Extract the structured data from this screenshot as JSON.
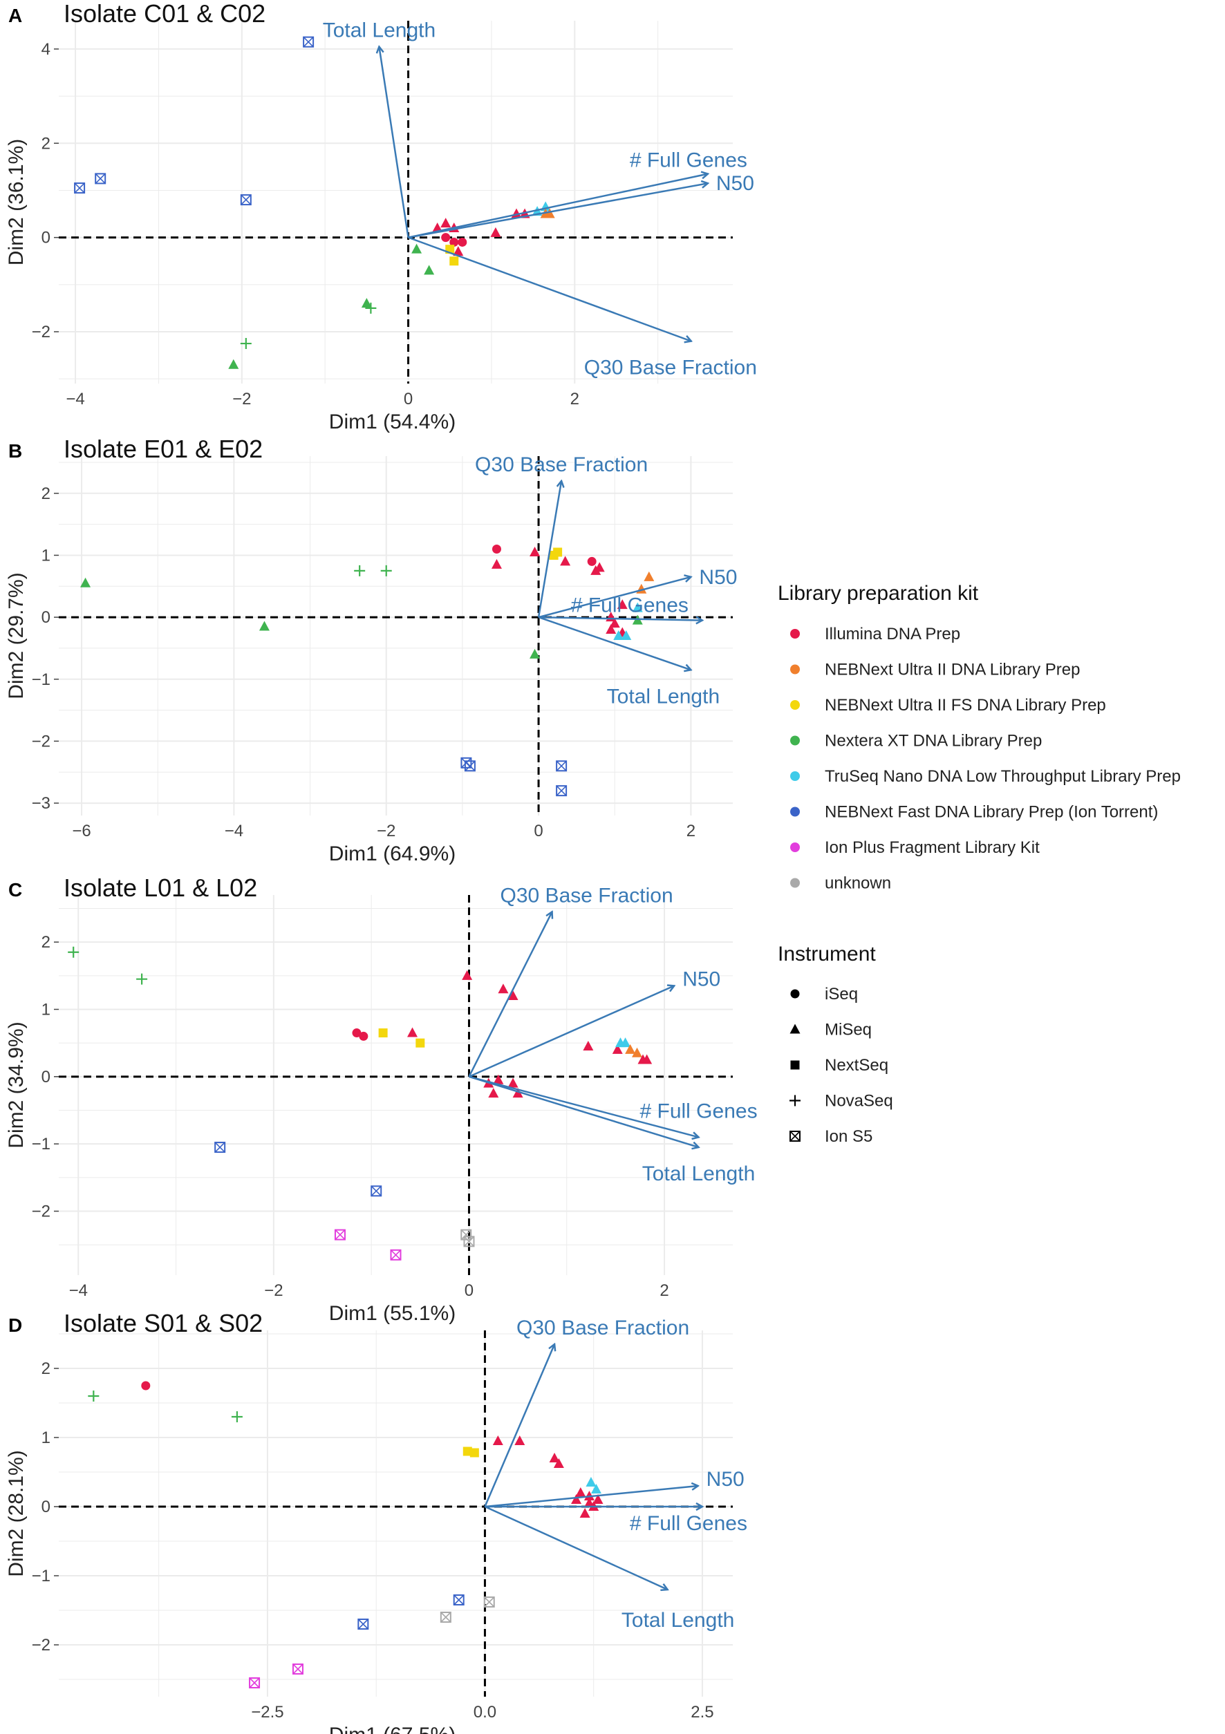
{
  "legend": {
    "kit_title": "Library preparation kit",
    "kits": [
      {
        "name": "Illumina DNA Prep",
        "color": "#e5194a"
      },
      {
        "name": "NEBNext Ultra II DNA Library Prep",
        "color": "#f07f2d"
      },
      {
        "name": "NEBNext Ultra II FS DNA Library Prep",
        "color": "#f3d70d"
      },
      {
        "name": "Nextera XT DNA Library Prep",
        "color": "#3fb34f"
      },
      {
        "name": "TruSeq Nano DNA Low Throughput Library Prep",
        "color": "#3fcbe9"
      },
      {
        "name": "NEBNext Fast DNA Library Prep (Ion Torrent)",
        "color": "#3a63c8"
      },
      {
        "name": "Ion Plus Fragment Library Kit",
        "color": "#e23ddd"
      },
      {
        "name": "unknown",
        "color": "#a9a9a9"
      }
    ],
    "instrument_title": "Instrument",
    "instruments": [
      "iSeq",
      "MiSeq",
      "NextSeq",
      "NovaSeq",
      "Ion S5"
    ]
  },
  "chart_data": [
    {
      "letter": "A",
      "type": "scatter",
      "title": "Isolate C01 & C02",
      "xlabel": "Dim1 (54.4%)",
      "ylabel": "Dim2 (36.1%)",
      "xlim": [
        -4.2,
        3.9
      ],
      "ylim": [
        -3.1,
        4.6
      ],
      "xticks": [
        -4,
        -2,
        0,
        2
      ],
      "xticklabels": [
        "−4",
        "−2",
        "0",
        "2"
      ],
      "yticks": [
        -2,
        0,
        2,
        4
      ],
      "yticklabels": [
        "−2",
        "0",
        "2",
        "4"
      ],
      "vectors": [
        {
          "label": "Total Length",
          "x": -0.35,
          "y": 4.05
        },
        {
          "label": "# Full Genes",
          "x": 3.6,
          "y": 1.35
        },
        {
          "label": "N50",
          "x": 3.6,
          "y": 1.15
        },
        {
          "label": "Q30 Base Fraction",
          "x": 3.4,
          "y": -2.2
        }
      ],
      "points": [
        {
          "x": -1.2,
          "y": 4.15,
          "kit": 5,
          "inst": 4
        },
        {
          "x": -3.95,
          "y": 1.05,
          "kit": 5,
          "inst": 4
        },
        {
          "x": -3.7,
          "y": 1.25,
          "kit": 5,
          "inst": 4
        },
        {
          "x": -1.95,
          "y": 0.8,
          "kit": 5,
          "inst": 4
        },
        {
          "x": -0.5,
          "y": -1.4,
          "kit": 3,
          "inst": 1
        },
        {
          "x": -0.45,
          "y": -1.5,
          "kit": 3,
          "inst": 3
        },
        {
          "x": -1.95,
          "y": -2.25,
          "kit": 3,
          "inst": 3
        },
        {
          "x": -2.1,
          "y": -2.7,
          "kit": 3,
          "inst": 1
        },
        {
          "x": 0.1,
          "y": -0.25,
          "kit": 3,
          "inst": 1
        },
        {
          "x": 0.25,
          "y": -0.7,
          "kit": 3,
          "inst": 1
        },
        {
          "x": 0.35,
          "y": 0.2,
          "kit": 0,
          "inst": 1
        },
        {
          "x": 0.45,
          "y": 0.3,
          "kit": 0,
          "inst": 1
        },
        {
          "x": 0.55,
          "y": 0.2,
          "kit": 0,
          "inst": 1
        },
        {
          "x": 0.45,
          "y": 0.0,
          "kit": 0,
          "inst": 0
        },
        {
          "x": 0.55,
          "y": -0.1,
          "kit": 0,
          "inst": 0
        },
        {
          "x": 0.65,
          "y": -0.1,
          "kit": 0,
          "inst": 0
        },
        {
          "x": 0.6,
          "y": -0.3,
          "kit": 0,
          "inst": 1
        },
        {
          "x": 0.5,
          "y": -0.25,
          "kit": 2,
          "inst": 2
        },
        {
          "x": 0.55,
          "y": -0.5,
          "kit": 2,
          "inst": 2
        },
        {
          "x": 1.05,
          "y": 0.1,
          "kit": 0,
          "inst": 1
        },
        {
          "x": 1.3,
          "y": 0.5,
          "kit": 0,
          "inst": 1
        },
        {
          "x": 1.4,
          "y": 0.5,
          "kit": 0,
          "inst": 1
        },
        {
          "x": 1.55,
          "y": 0.55,
          "kit": 4,
          "inst": 1
        },
        {
          "x": 1.65,
          "y": 0.65,
          "kit": 4,
          "inst": 1
        },
        {
          "x": 1.7,
          "y": 0.5,
          "kit": 1,
          "inst": 1
        },
        {
          "x": 1.65,
          "y": 0.5,
          "kit": 1,
          "inst": 1
        }
      ]
    },
    {
      "letter": "B",
      "type": "scatter",
      "title": "Isolate E01 & E02",
      "xlabel": "Dim1 (64.9%)",
      "ylabel": "Dim2 (29.7%)",
      "xlim": [
        -6.3,
        2.55
      ],
      "ylim": [
        -3.2,
        2.6
      ],
      "xticks": [
        -6,
        -4,
        -2,
        0,
        2
      ],
      "xticklabels": [
        "−6",
        "−4",
        "−2",
        "0",
        "2"
      ],
      "yticks": [
        -3,
        -2,
        -1,
        0,
        1,
        2
      ],
      "yticklabels": [
        "−3",
        "−2",
        "−1",
        "0",
        "1",
        "2"
      ],
      "vectors": [
        {
          "label": "Q30 Base Fraction",
          "x": 0.3,
          "y": 2.2
        },
        {
          "label": "N50",
          "x": 2.0,
          "y": 0.65
        },
        {
          "label": "# Full Genes",
          "x": 2.15,
          "y": -0.05
        },
        {
          "label": "Total Length",
          "x": 2.0,
          "y": -0.85
        }
      ],
      "points": [
        {
          "x": -5.95,
          "y": 0.55,
          "kit": 3,
          "inst": 1
        },
        {
          "x": -3.6,
          "y": -0.15,
          "kit": 3,
          "inst": 1
        },
        {
          "x": -2.35,
          "y": 0.75,
          "kit": 3,
          "inst": 3
        },
        {
          "x": -2.0,
          "y": 0.75,
          "kit": 3,
          "inst": 3
        },
        {
          "x": -0.05,
          "y": -0.6,
          "kit": 3,
          "inst": 1
        },
        {
          "x": -0.55,
          "y": 1.1,
          "kit": 0,
          "inst": 0
        },
        {
          "x": -0.55,
          "y": 0.85,
          "kit": 0,
          "inst": 1
        },
        {
          "x": -0.05,
          "y": 1.05,
          "kit": 0,
          "inst": 1
        },
        {
          "x": 0.2,
          "y": 1.0,
          "kit": 2,
          "inst": 2
        },
        {
          "x": 0.25,
          "y": 1.05,
          "kit": 2,
          "inst": 2
        },
        {
          "x": 0.35,
          "y": 0.9,
          "kit": 0,
          "inst": 1
        },
        {
          "x": 0.7,
          "y": 0.9,
          "kit": 0,
          "inst": 0
        },
        {
          "x": 0.75,
          "y": 0.75,
          "kit": 0,
          "inst": 1
        },
        {
          "x": 0.8,
          "y": 0.8,
          "kit": 0,
          "inst": 1
        },
        {
          "x": 1.35,
          "y": 0.45,
          "kit": 1,
          "inst": 1
        },
        {
          "x": 1.45,
          "y": 0.65,
          "kit": 1,
          "inst": 1
        },
        {
          "x": 1.1,
          "y": 0.2,
          "kit": 0,
          "inst": 1
        },
        {
          "x": 1.3,
          "y": 0.15,
          "kit": 4,
          "inst": 1
        },
        {
          "x": 1.3,
          "y": -0.05,
          "kit": 3,
          "inst": 1
        },
        {
          "x": 0.95,
          "y": 0.0,
          "kit": 0,
          "inst": 1
        },
        {
          "x": 1.0,
          "y": -0.1,
          "kit": 0,
          "inst": 1
        },
        {
          "x": 0.95,
          "y": -0.2,
          "kit": 0,
          "inst": 1
        },
        {
          "x": 1.1,
          "y": -0.25,
          "kit": 0,
          "inst": 1
        },
        {
          "x": 1.05,
          "y": -0.3,
          "kit": 4,
          "inst": 1
        },
        {
          "x": 1.15,
          "y": -0.3,
          "kit": 4,
          "inst": 1
        },
        {
          "x": -0.95,
          "y": -2.35,
          "kit": 5,
          "inst": 4
        },
        {
          "x": -0.9,
          "y": -2.4,
          "kit": 5,
          "inst": 4
        },
        {
          "x": 0.3,
          "y": -2.4,
          "kit": 5,
          "inst": 4
        },
        {
          "x": 0.3,
          "y": -2.8,
          "kit": 5,
          "inst": 4
        }
      ]
    },
    {
      "letter": "C",
      "type": "scatter",
      "title": "Isolate L01 & L02",
      "xlabel": "Dim1 (55.1%)",
      "ylabel": "Dim2 (34.9%)",
      "xlim": [
        -4.2,
        2.7
      ],
      "ylim": [
        -2.95,
        2.7
      ],
      "xticks": [
        -4,
        -2,
        0,
        2
      ],
      "xticklabels": [
        "−4",
        "−2",
        "0",
        "2"
      ],
      "yticks": [
        -2,
        -1,
        0,
        1,
        2
      ],
      "yticklabels": [
        "−2",
        "−1",
        "0",
        "1",
        "2"
      ],
      "vectors": [
        {
          "label": "Q30 Base Fraction",
          "x": 0.85,
          "y": 2.45
        },
        {
          "label": "N50",
          "x": 2.1,
          "y": 1.35
        },
        {
          "label": "# Full Genes",
          "x": 2.35,
          "y": -0.9
        },
        {
          "label": "Total Length",
          "x": 2.35,
          "y": -1.05
        }
      ],
      "points": [
        {
          "x": -4.05,
          "y": 1.85,
          "kit": 3,
          "inst": 3
        },
        {
          "x": -3.35,
          "y": 1.45,
          "kit": 3,
          "inst": 3
        },
        {
          "x": -1.15,
          "y": 0.65,
          "kit": 0,
          "inst": 0
        },
        {
          "x": -1.08,
          "y": 0.6,
          "kit": 0,
          "inst": 0
        },
        {
          "x": -0.88,
          "y": 0.65,
          "kit": 2,
          "inst": 2
        },
        {
          "x": -0.58,
          "y": 0.65,
          "kit": 0,
          "inst": 1
        },
        {
          "x": -0.5,
          "y": 0.5,
          "kit": 2,
          "inst": 2
        },
        {
          "x": -0.02,
          "y": 1.5,
          "kit": 0,
          "inst": 1
        },
        {
          "x": 0.35,
          "y": 1.3,
          "kit": 0,
          "inst": 1
        },
        {
          "x": 0.45,
          "y": 1.2,
          "kit": 0,
          "inst": 1
        },
        {
          "x": 0.2,
          "y": -0.1,
          "kit": 0,
          "inst": 1
        },
        {
          "x": 0.3,
          "y": -0.05,
          "kit": 0,
          "inst": 1
        },
        {
          "x": 0.25,
          "y": -0.25,
          "kit": 0,
          "inst": 1
        },
        {
          "x": 0.45,
          "y": -0.1,
          "kit": 0,
          "inst": 1
        },
        {
          "x": 0.5,
          "y": -0.25,
          "kit": 0,
          "inst": 1
        },
        {
          "x": 1.22,
          "y": 0.45,
          "kit": 0,
          "inst": 1
        },
        {
          "x": 1.52,
          "y": 0.4,
          "kit": 0,
          "inst": 1
        },
        {
          "x": 1.55,
          "y": 0.5,
          "kit": 4,
          "inst": 1
        },
        {
          "x": 1.6,
          "y": 0.5,
          "kit": 4,
          "inst": 1
        },
        {
          "x": 1.65,
          "y": 0.4,
          "kit": 1,
          "inst": 1
        },
        {
          "x": 1.72,
          "y": 0.35,
          "kit": 1,
          "inst": 1
        },
        {
          "x": 1.78,
          "y": 0.25,
          "kit": 0,
          "inst": 1
        },
        {
          "x": 1.82,
          "y": 0.25,
          "kit": 0,
          "inst": 1
        },
        {
          "x": -2.55,
          "y": -1.05,
          "kit": 5,
          "inst": 4
        },
        {
          "x": -0.95,
          "y": -1.7,
          "kit": 5,
          "inst": 4
        },
        {
          "x": -1.32,
          "y": -2.35,
          "kit": 6,
          "inst": 4
        },
        {
          "x": -0.75,
          "y": -2.65,
          "kit": 6,
          "inst": 4
        },
        {
          "x": -0.03,
          "y": -2.35,
          "kit": 7,
          "inst": 4
        },
        {
          "x": 0.0,
          "y": -2.45,
          "kit": 7,
          "inst": 4
        }
      ]
    },
    {
      "letter": "D",
      "type": "scatter",
      "title": "Isolate S01 & S02",
      "xlabel": "Dim1 (67.5%)",
      "ylabel": "Dim2 (28.1%)",
      "xlim": [
        -4.9,
        2.85
      ],
      "ylim": [
        -2.75,
        2.55
      ],
      "xticks": [
        -2.5,
        0.0,
        2.5
      ],
      "xticklabels": [
        "−2.5",
        "0.0",
        "2.5"
      ],
      "yticks": [
        -2,
        -1,
        0,
        1,
        2
      ],
      "yticklabels": [
        "−2",
        "−1",
        "0",
        "1",
        "2"
      ],
      "vectors": [
        {
          "label": "Q30 Base Fraction",
          "x": 0.8,
          "y": 2.35
        },
        {
          "label": "N50",
          "x": 2.45,
          "y": 0.3
        },
        {
          "label": "# Full Genes",
          "x": 2.5,
          "y": 0.0
        },
        {
          "label": "Total Length",
          "x": 2.1,
          "y": -1.2
        }
      ],
      "points": [
        {
          "x": -4.5,
          "y": 1.6,
          "kit": 3,
          "inst": 3
        },
        {
          "x": -3.9,
          "y": 1.75,
          "kit": 0,
          "inst": 0
        },
        {
          "x": -2.85,
          "y": 1.3,
          "kit": 3,
          "inst": 3
        },
        {
          "x": -0.2,
          "y": 0.8,
          "kit": 2,
          "inst": 2
        },
        {
          "x": -0.12,
          "y": 0.78,
          "kit": 2,
          "inst": 2
        },
        {
          "x": 0.15,
          "y": 0.95,
          "kit": 0,
          "inst": 1
        },
        {
          "x": 0.4,
          "y": 0.95,
          "kit": 0,
          "inst": 1
        },
        {
          "x": 0.8,
          "y": 0.7,
          "kit": 0,
          "inst": 1
        },
        {
          "x": 0.85,
          "y": 0.62,
          "kit": 0,
          "inst": 1
        },
        {
          "x": 1.05,
          "y": 0.1,
          "kit": 0,
          "inst": 1
        },
        {
          "x": 1.1,
          "y": 0.2,
          "kit": 0,
          "inst": 1
        },
        {
          "x": 1.15,
          "y": -0.1,
          "kit": 0,
          "inst": 1
        },
        {
          "x": 1.2,
          "y": 0.15,
          "kit": 0,
          "inst": 1
        },
        {
          "x": 1.22,
          "y": 0.35,
          "kit": 4,
          "inst": 1
        },
        {
          "x": 1.28,
          "y": 0.25,
          "kit": 4,
          "inst": 1
        },
        {
          "x": 1.25,
          "y": 0.0,
          "kit": 0,
          "inst": 1
        },
        {
          "x": 1.3,
          "y": 0.1,
          "kit": 0,
          "inst": 1
        },
        {
          "x": 1.2,
          "y": 0.05,
          "kit": 0,
          "inst": 1
        },
        {
          "x": -1.4,
          "y": -1.7,
          "kit": 5,
          "inst": 4
        },
        {
          "x": -0.3,
          "y": -1.35,
          "kit": 5,
          "inst": 4
        },
        {
          "x": -0.45,
          "y": -1.6,
          "kit": 7,
          "inst": 4
        },
        {
          "x": 0.05,
          "y": -1.38,
          "kit": 7,
          "inst": 4
        },
        {
          "x": -2.15,
          "y": -2.35,
          "kit": 6,
          "inst": 4
        },
        {
          "x": -2.65,
          "y": -2.55,
          "kit": 6,
          "inst": 4
        }
      ]
    }
  ]
}
